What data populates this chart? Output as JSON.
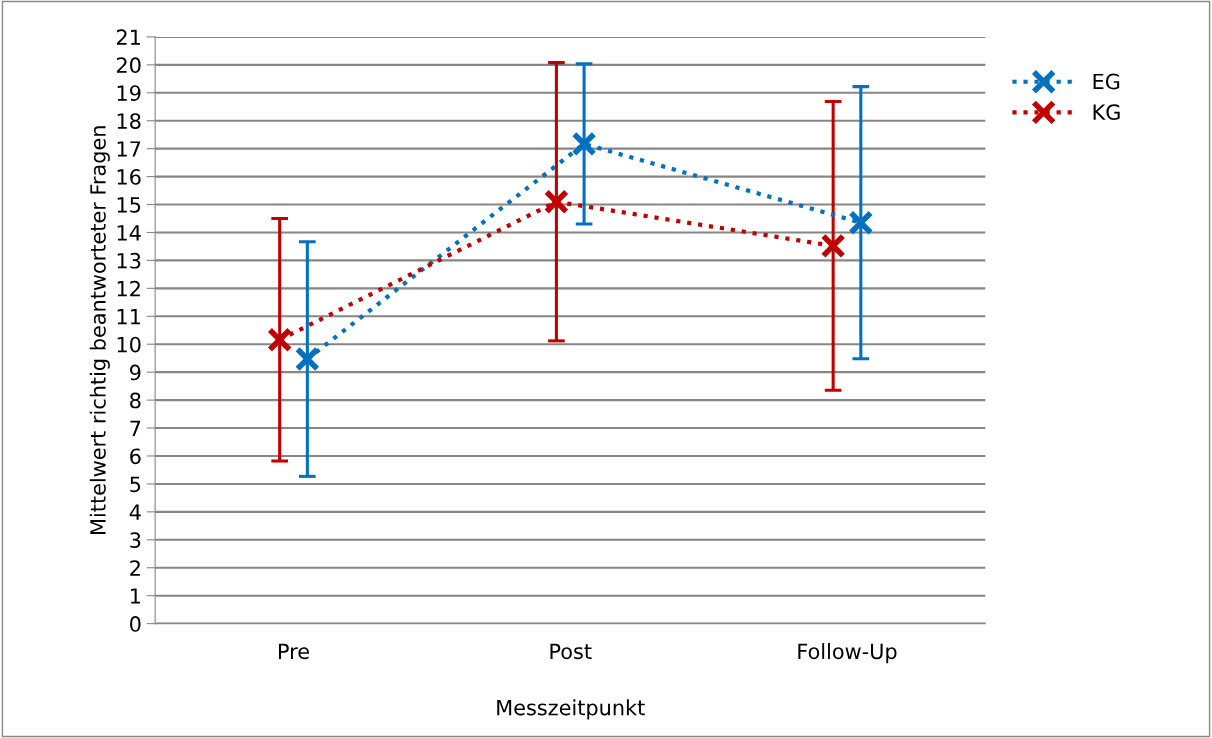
{
  "chart_data": {
    "type": "line",
    "xlabel": "Messzeitpunkt",
    "ylabel": "Mittelwert richtig beantworteter Fragen",
    "categories": [
      "Pre",
      "Post",
      "Follow-Up"
    ],
    "series": [
      {
        "name": "EG",
        "color": "#0070c0",
        "values": [
          9.47,
          17.17,
          14.35
        ],
        "errors": [
          4.2,
          2.87,
          4.87
        ]
      },
      {
        "name": "KG",
        "color": "#c00000",
        "values": [
          10.16,
          15.1,
          13.52
        ],
        "errors": [
          4.34,
          4.98,
          5.17
        ]
      }
    ],
    "ylim": [
      0,
      21
    ],
    "yticks": [
      0,
      1,
      2,
      3,
      4,
      5,
      6,
      7,
      8,
      9,
      10,
      11,
      12,
      13,
      14,
      15,
      16,
      17,
      18,
      19,
      20,
      21
    ],
    "grid": "y",
    "legend": "top right",
    "marker": "cross",
    "line_style": "dotted"
  }
}
